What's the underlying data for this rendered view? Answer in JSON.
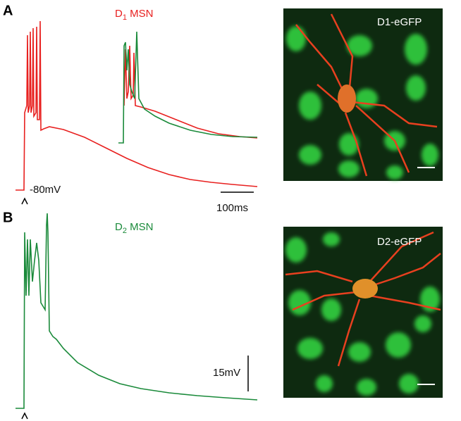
{
  "panels": [
    {
      "letter": "A",
      "trace_title": {
        "prefix": "D",
        "subscript": "1",
        "rest": " MSN"
      },
      "baseline_label": "-80mV",
      "scale_label": "100ms",
      "image_label": "D1-eGFP"
    },
    {
      "letter": "B",
      "trace_title": {
        "prefix": "D",
        "subscript": "2",
        "rest": " MSN"
      },
      "scale_label": "15mV",
      "image_label": "D2-eGFP"
    }
  ]
}
